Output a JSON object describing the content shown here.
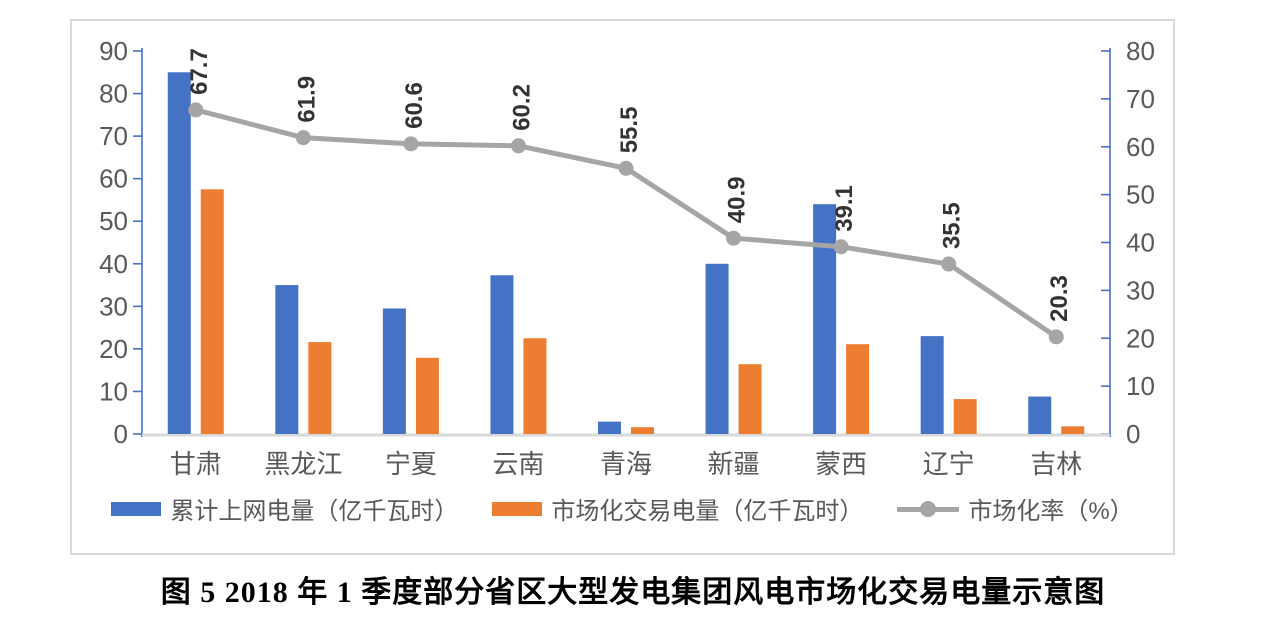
{
  "figure": {
    "caption": "图 5 2018 年 1 季度部分省区大型发电集团风电市场化交易电量示意图"
  },
  "colors": {
    "bar_blue": "#4472C4",
    "bar_orange": "#ED7D31",
    "line_gray": "#A5A5A5",
    "axis_line": "#4472C4",
    "baseline": "#D9D9D9",
    "tick_label": "#595959",
    "category_label": "#595959",
    "data_label": "#333333",
    "border": "#D9D9D9"
  },
  "legend": {
    "items": [
      {
        "marker": "bar",
        "color_key": "bar_blue",
        "label": "累计上网电量（亿千瓦时）"
      },
      {
        "marker": "bar",
        "color_key": "bar_orange",
        "label": "市场化交易电量（亿千瓦时）"
      },
      {
        "marker": "line",
        "color_key": "line_gray",
        "label": "市场化率（%）"
      }
    ]
  },
  "chart_data": {
    "type": "bar",
    "subtype": "bar+line-combo",
    "categories": [
      "甘肃",
      "黑龙江",
      "宁夏",
      "云南",
      "青海",
      "新疆",
      "蒙西",
      "辽宁",
      "吉林"
    ],
    "series": [
      {
        "name": "累计上网电量（亿千瓦时）",
        "type": "bar",
        "axis": "left",
        "color_key": "bar_blue",
        "values": [
          85,
          35,
          29.5,
          37.3,
          2.9,
          40,
          54,
          23,
          8.8
        ]
      },
      {
        "name": "市场化交易电量（亿千瓦时）",
        "type": "bar",
        "axis": "left",
        "color_key": "bar_orange",
        "values": [
          57.5,
          21.6,
          17.9,
          22.5,
          1.6,
          16.4,
          21.1,
          8.2,
          1.8
        ]
      },
      {
        "name": "市场化率（%）",
        "type": "line",
        "axis": "right",
        "color_key": "line_gray",
        "values": [
          67.7,
          61.9,
          60.6,
          60.2,
          55.5,
          40.9,
          39.1,
          35.5,
          20.3
        ],
        "data_labels": [
          67.7,
          61.9,
          60.6,
          60.2,
          55.5,
          40.9,
          39.1,
          35.5,
          20.3
        ],
        "data_label_rotation": -90
      }
    ],
    "left_axis": {
      "min": 0,
      "max": 90,
      "step": 10
    },
    "right_axis": {
      "min": 0,
      "max": 80,
      "step": 10
    },
    "grid": false,
    "legend_position": "bottom",
    "title": "",
    "xlabel": "",
    "ylabel": ""
  }
}
